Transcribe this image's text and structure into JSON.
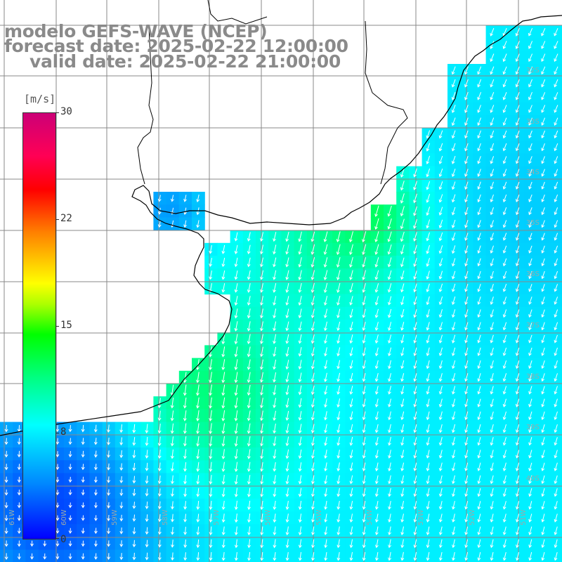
{
  "header": {
    "model_line": "modelo GEFS-WAVE (NCEP)",
    "forecast_line": "forecast date: 2025-02-22 12:00:00",
    "valid_line": "valid date: 2025-02-22 21:00:00"
  },
  "colorbar": {
    "unit": "[m/s]",
    "ticks": [
      "30",
      "22",
      "15",
      "8",
      "0"
    ],
    "tick_values": [
      30,
      22,
      15,
      8,
      0
    ],
    "min": 0,
    "max": 30,
    "colors": [
      "#0000ff",
      "#0088ff",
      "#00ffff",
      "#00ff80",
      "#00ff00",
      "#aaff00",
      "#ffff00",
      "#ff8000",
      "#ff0000",
      "#ff0055",
      "#cc0077"
    ]
  },
  "latitude_labels": [
    "32S",
    "33S",
    "34S",
    "35S",
    "36S",
    "37S",
    "38S",
    "39S",
    "40S"
  ],
  "longitude_labels": [
    "61W",
    "60W",
    "59W",
    "58W",
    "57W",
    "56W",
    "55W",
    "54W",
    "53W",
    "52W",
    "51W"
  ],
  "colors": {
    "coastline": "#000000",
    "grid": "#888888",
    "arrows": "#ffffff",
    "land": "#ffffff",
    "title": "#8a8a8a"
  }
}
